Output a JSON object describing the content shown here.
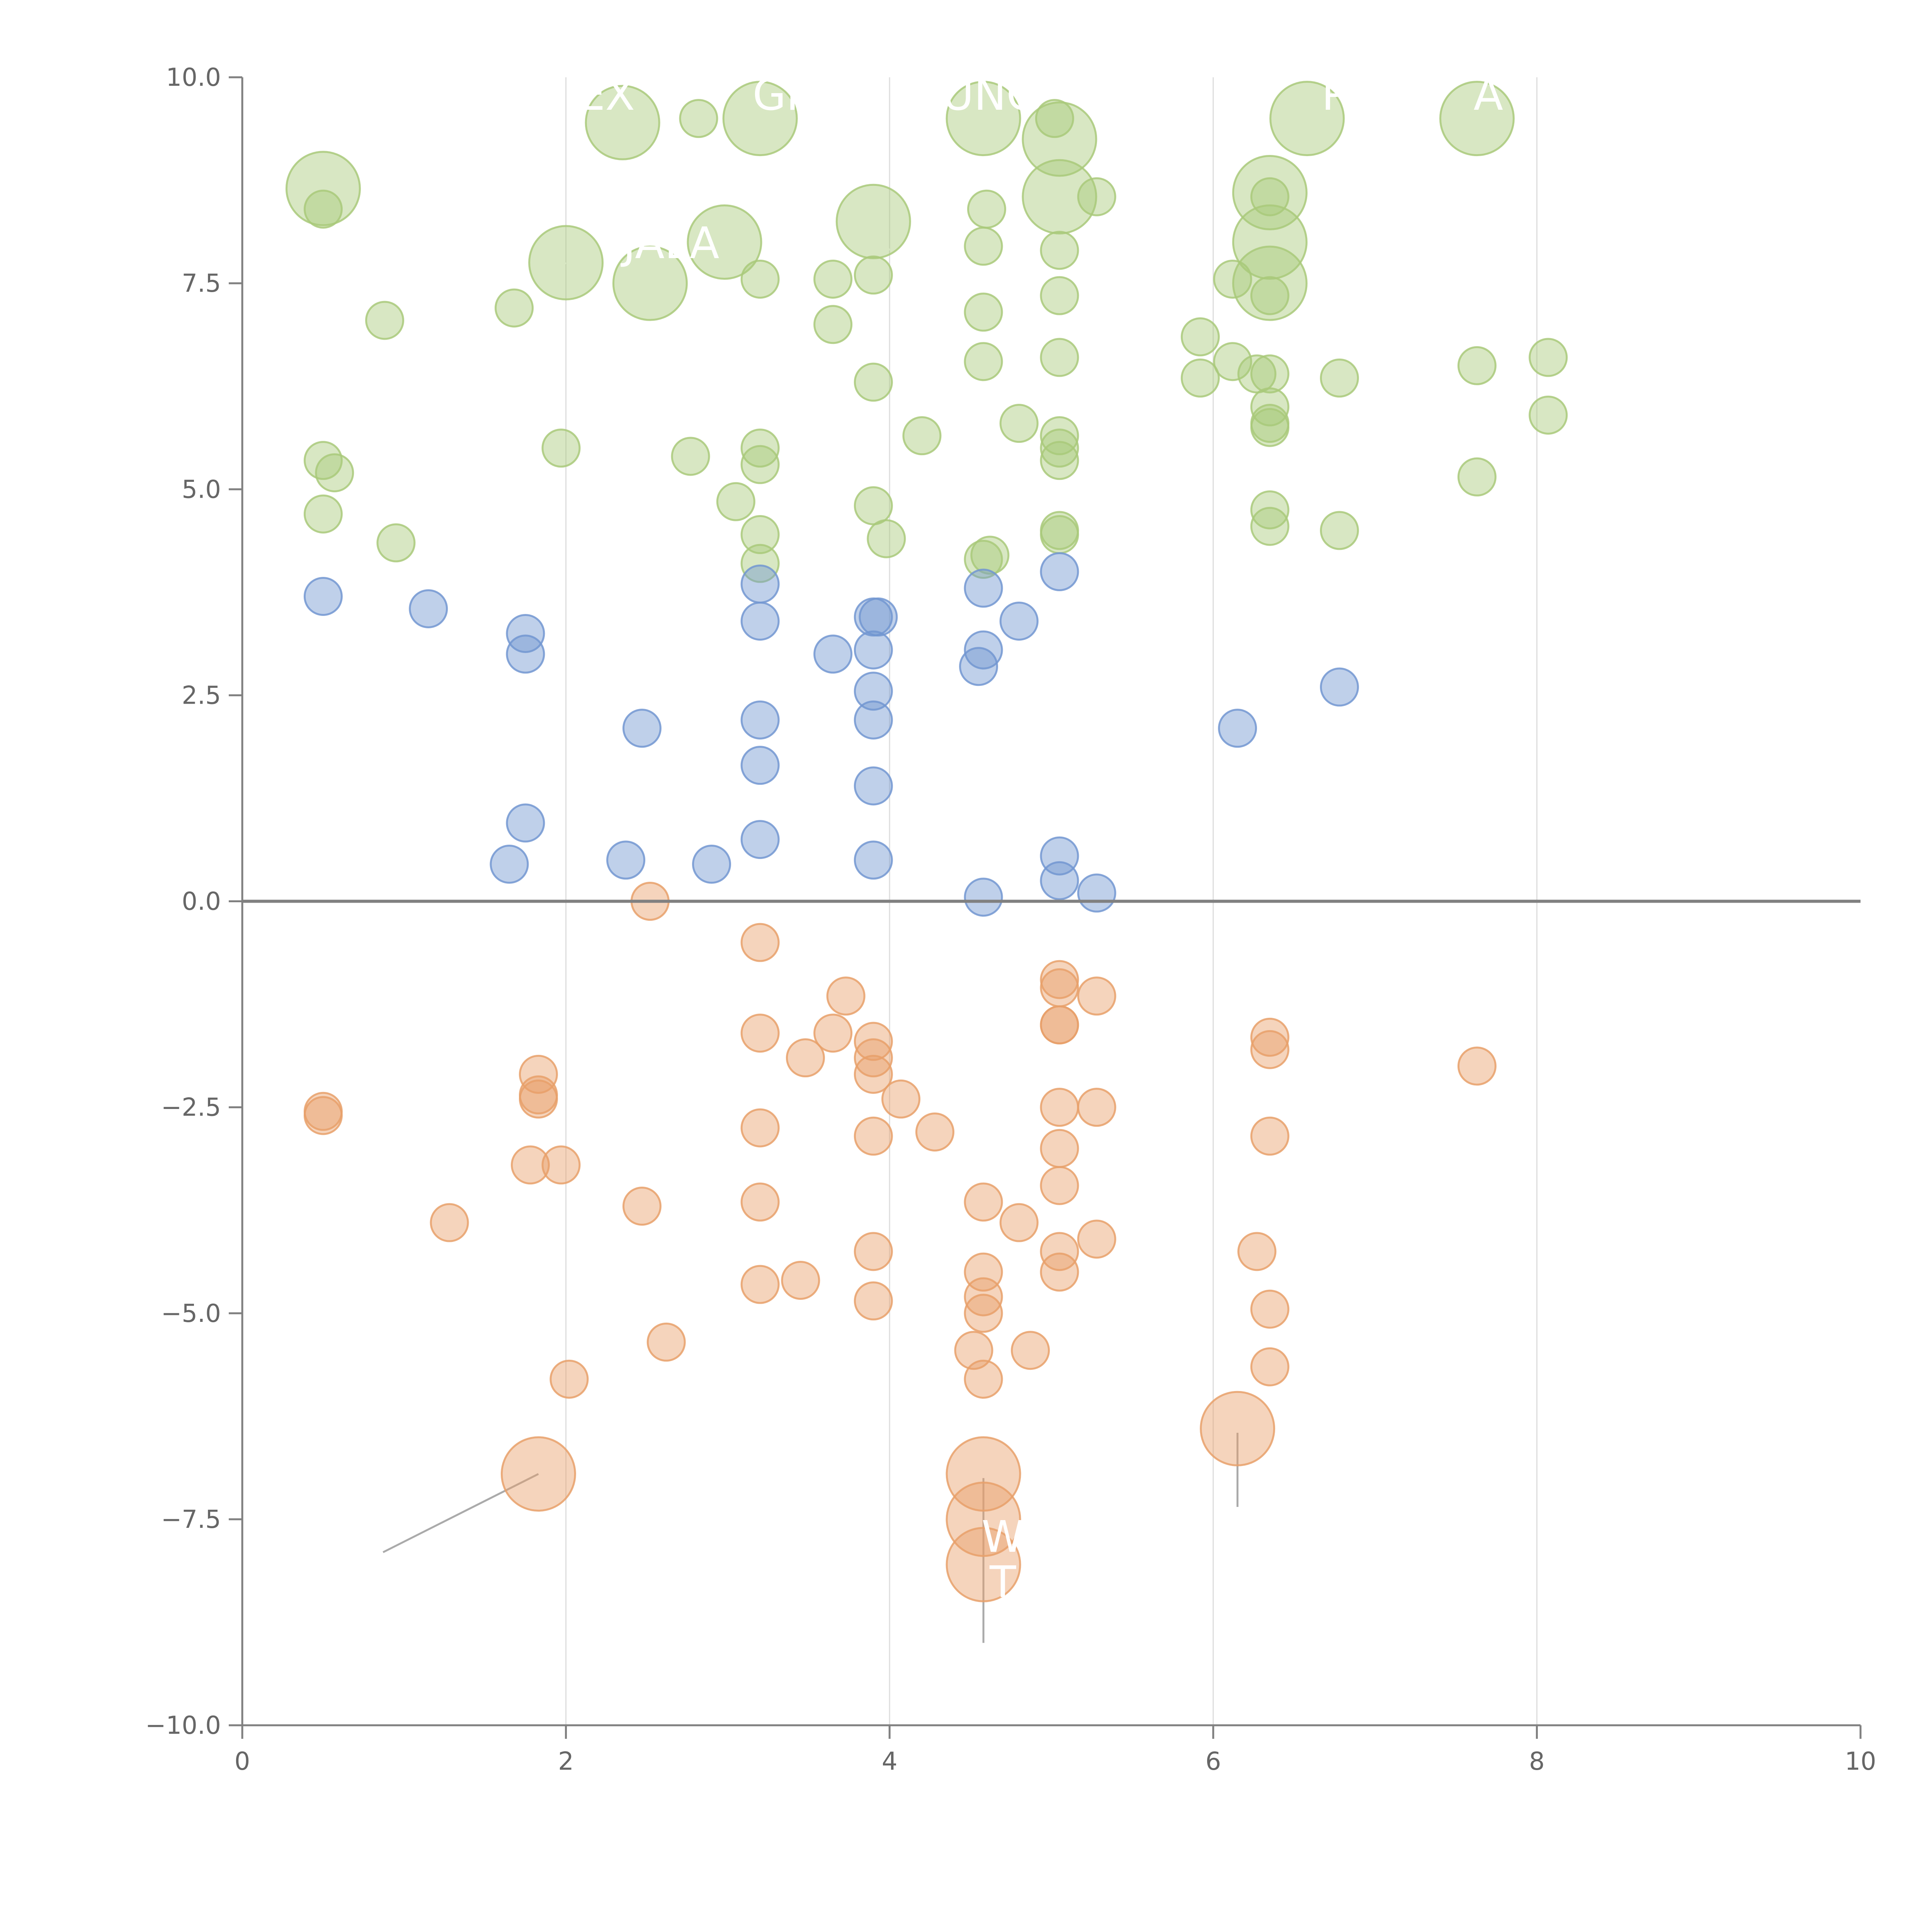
{
  "chart_data": {
    "type": "scatter",
    "title": "",
    "xlabel": "",
    "ylabel": "",
    "xlim": [
      0,
      10
    ],
    "ylim": [
      -10,
      10
    ],
    "x_ticks": [
      "0",
      "2",
      "4",
      "6",
      "8",
      "10"
    ],
    "y_ticks": [
      "−10.0",
      "−7.5",
      "−5.0",
      "−2.5",
      "0.0",
      "2.5",
      "5.0",
      "7.5",
      "10.0"
    ],
    "grid": "vertical gridlines at x = 2, 4, 6, 8",
    "legend": "none",
    "colors": {
      "green": "#a9c97a",
      "blue": "#7297d1",
      "orange": "#e8a06a",
      "axis": "#808080",
      "grid": "#dddddd"
    },
    "series": [
      {
        "color": "green",
        "points": [
          [
            0.5,
            8.65
          ],
          [
            0.5,
            8.4
          ],
          [
            0.88,
            7.05
          ],
          [
            1.68,
            7.2
          ],
          [
            2.0,
            7.75
          ],
          [
            2.35,
            9.45
          ],
          [
            2.52,
            7.5
          ],
          [
            2.82,
            9.5
          ],
          [
            2.98,
            8.0
          ],
          [
            3.2,
            9.5
          ],
          [
            3.2,
            7.55
          ],
          [
            3.65,
            7.55
          ],
          [
            3.65,
            7.0
          ],
          [
            3.9,
            8.25
          ],
          [
            3.9,
            7.6
          ],
          [
            3.9,
            6.3
          ],
          [
            4.58,
            9.5
          ],
          [
            4.6,
            8.4
          ],
          [
            4.58,
            7.95
          ],
          [
            4.58,
            7.15
          ],
          [
            4.58,
            6.55
          ],
          [
            5.02,
            9.5
          ],
          [
            5.05,
            9.25
          ],
          [
            5.05,
            8.55
          ],
          [
            5.28,
            8.55
          ],
          [
            5.05,
            7.9
          ],
          [
            5.05,
            7.35
          ],
          [
            5.05,
            6.6
          ],
          [
            5.92,
            6.85
          ],
          [
            5.92,
            6.35
          ],
          [
            6.12,
            7.55
          ],
          [
            6.12,
            6.55
          ],
          [
            6.27,
            6.4
          ],
          [
            6.35,
            6.4
          ],
          [
            6.35,
            8.6
          ],
          [
            6.35,
            8.55
          ],
          [
            6.35,
            8.0
          ],
          [
            6.35,
            7.5
          ],
          [
            6.35,
            7.35
          ],
          [
            6.35,
            6.0
          ],
          [
            6.35,
            5.8
          ],
          [
            6.35,
            5.75
          ],
          [
            6.35,
            4.75
          ],
          [
            6.35,
            4.55
          ],
          [
            6.58,
            9.5
          ],
          [
            6.78,
            6.35
          ],
          [
            6.78,
            4.5
          ],
          [
            7.63,
            9.5
          ],
          [
            7.63,
            6.5
          ],
          [
            7.63,
            5.15
          ],
          [
            8.07,
            6.6
          ],
          [
            8.07,
            5.9
          ],
          [
            0.5,
            5.35
          ],
          [
            0.57,
            5.2
          ],
          [
            0.5,
            4.7
          ],
          [
            0.95,
            4.35
          ],
          [
            1.97,
            5.5
          ],
          [
            2.77,
            5.4
          ],
          [
            3.05,
            4.85
          ],
          [
            3.2,
            5.5
          ],
          [
            3.2,
            5.3
          ],
          [
            3.2,
            4.45
          ],
          [
            3.2,
            4.1
          ],
          [
            3.9,
            4.8
          ],
          [
            3.98,
            4.4
          ],
          [
            4.2,
            5.65
          ],
          [
            4.8,
            5.8
          ],
          [
            5.05,
            5.65
          ],
          [
            5.05,
            5.5
          ],
          [
            5.05,
            5.35
          ],
          [
            5.05,
            4.5
          ],
          [
            5.05,
            4.45
          ],
          [
            4.62,
            4.2
          ],
          [
            4.58,
            4.15
          ]
        ],
        "sizes": [
          3,
          1,
          1,
          1,
          3,
          3,
          3,
          1,
          3,
          3,
          1,
          1,
          1,
          3,
          1,
          1,
          3,
          1,
          1,
          1,
          1,
          1,
          3,
          3,
          1,
          1,
          1,
          1,
          1,
          1,
          1,
          1,
          1,
          1,
          3,
          1,
          3,
          3,
          1,
          1,
          1,
          1,
          1,
          1,
          3,
          1,
          1,
          3,
          1,
          1,
          1,
          1,
          1,
          1,
          1,
          1,
          1,
          1,
          1,
          1,
          1,
          1,
          1,
          1,
          1,
          1,
          1,
          1,
          1,
          1,
          1,
          1,
          1,
          1
        ]
      },
      {
        "color": "blue",
        "points": [
          [
            0.5,
            3.7
          ],
          [
            1.15,
            3.55
          ],
          [
            1.75,
            3.25
          ],
          [
            1.75,
            3.0
          ],
          [
            2.47,
            2.1
          ],
          [
            1.65,
            0.45
          ],
          [
            1.75,
            0.95
          ],
          [
            2.37,
            0.5
          ],
          [
            2.9,
            0.45
          ],
          [
            3.2,
            3.85
          ],
          [
            3.2,
            3.4
          ],
          [
            3.2,
            2.2
          ],
          [
            3.2,
            1.65
          ],
          [
            3.2,
            0.75
          ],
          [
            3.65,
            3.0
          ],
          [
            3.9,
            3.45
          ],
          [
            3.93,
            3.45
          ],
          [
            3.9,
            3.05
          ],
          [
            3.9,
            2.55
          ],
          [
            3.9,
            2.2
          ],
          [
            3.9,
            1.4
          ],
          [
            3.9,
            0.5
          ],
          [
            4.58,
            3.8
          ],
          [
            4.58,
            3.05
          ],
          [
            4.55,
            2.85
          ],
          [
            4.8,
            3.4
          ],
          [
            4.58,
            0.05
          ],
          [
            5.05,
            4.0
          ],
          [
            5.05,
            0.55
          ],
          [
            5.05,
            0.25
          ],
          [
            5.28,
            0.1
          ],
          [
            6.15,
            2.1
          ],
          [
            6.78,
            2.6
          ]
        ],
        "sizes": [
          1,
          1,
          1,
          1,
          1,
          1,
          1,
          1,
          1,
          1,
          1,
          1,
          1,
          1,
          1,
          1,
          1,
          1,
          1,
          1,
          1,
          1,
          1,
          1,
          1,
          1,
          1,
          1,
          1,
          1,
          1,
          1,
          1
        ]
      },
      {
        "color": "orange",
        "points": [
          [
            0.5,
            -2.6
          ],
          [
            0.5,
            -2.55
          ],
          [
            1.28,
            -3.9
          ],
          [
            1.78,
            -3.2
          ],
          [
            1.83,
            -2.1
          ],
          [
            1.83,
            -2.4
          ],
          [
            1.83,
            -2.35
          ],
          [
            1.97,
            -3.2
          ],
          [
            2.02,
            -5.8
          ],
          [
            1.83,
            -6.95
          ],
          [
            2.47,
            -3.7
          ],
          [
            2.52,
            0.0
          ],
          [
            2.62,
            -5.35
          ],
          [
            3.2,
            -0.5
          ],
          [
            3.2,
            -1.6
          ],
          [
            3.2,
            -2.75
          ],
          [
            3.2,
            -3.65
          ],
          [
            3.2,
            -4.65
          ],
          [
            3.45,
            -4.6
          ],
          [
            3.48,
            -1.9
          ],
          [
            3.65,
            -1.6
          ],
          [
            3.73,
            -1.15
          ],
          [
            3.9,
            -1.7
          ],
          [
            3.9,
            -1.9
          ],
          [
            3.9,
            -2.1
          ],
          [
            3.9,
            -2.85
          ],
          [
            3.9,
            -4.25
          ],
          [
            3.9,
            -4.85
          ],
          [
            4.07,
            -2.4
          ],
          [
            4.28,
            -2.8
          ],
          [
            4.58,
            -3.65
          ],
          [
            4.58,
            -4.5
          ],
          [
            4.58,
            -4.8
          ],
          [
            4.58,
            -5.0
          ],
          [
            4.52,
            -5.45
          ],
          [
            4.58,
            -5.8
          ],
          [
            4.58,
            -6.95
          ],
          [
            4.58,
            -7.5
          ],
          [
            4.58,
            -8.05
          ],
          [
            4.8,
            -3.9
          ],
          [
            4.87,
            -5.45
          ],
          [
            5.05,
            -0.95
          ],
          [
            5.05,
            -1.05
          ],
          [
            5.05,
            -1.5
          ],
          [
            5.05,
            -1.5
          ],
          [
            5.05,
            -2.5
          ],
          [
            5.05,
            -3.0
          ],
          [
            5.05,
            -3.45
          ],
          [
            5.05,
            -4.25
          ],
          [
            5.05,
            -4.5
          ],
          [
            5.28,
            -1.15
          ],
          [
            5.28,
            -2.5
          ],
          [
            5.28,
            -4.1
          ],
          [
            6.15,
            -6.4
          ],
          [
            6.27,
            -4.25
          ],
          [
            6.35,
            -1.65
          ],
          [
            6.35,
            -1.8
          ],
          [
            6.35,
            -2.85
          ],
          [
            6.35,
            -4.95
          ],
          [
            6.35,
            -5.65
          ],
          [
            7.63,
            -2.0
          ]
        ],
        "sizes": [
          1,
          1,
          1,
          1,
          1,
          1,
          1,
          1,
          1,
          3,
          1,
          1,
          1,
          1,
          1,
          1,
          1,
          1,
          1,
          1,
          1,
          1,
          1,
          1,
          1,
          1,
          1,
          1,
          1,
          1,
          1,
          1,
          1,
          1,
          1,
          1,
          3,
          3,
          3,
          1,
          1,
          1,
          1,
          1,
          1,
          1,
          1,
          1,
          1,
          1,
          1,
          1,
          1,
          3,
          1,
          1,
          1,
          1,
          1,
          1,
          1
        ]
      }
    ],
    "annotations": [
      {
        "text": "EX",
        "x": 2.25,
        "y": 9.75
      },
      {
        "text": "GR",
        "x": 3.35,
        "y": 9.75
      },
      {
        "text": "FUNG",
        "x": 4.55,
        "y": 9.75
      },
      {
        "text": "P",
        "x": 6.75,
        "y": 9.75
      },
      {
        "text": "A",
        "x": 7.7,
        "y": 9.75
      },
      {
        "text": "JALA",
        "x": 2.65,
        "y": 7.95
      },
      {
        "text": "W",
        "x": 4.7,
        "y": -7.75
      },
      {
        "text": "T",
        "x": 4.7,
        "y": -8.3
      }
    ],
    "leader_lines": [
      {
        "color": "white",
        "from": [
          0.5,
          8.35
        ],
        "to": [
          0.5,
          9.2
        ]
      },
      {
        "color": "white",
        "from": [
          2.0,
          7.75
        ],
        "to": [
          1.65,
          7.0
        ]
      },
      {
        "color": "white",
        "from": [
          2.52,
          7.5
        ],
        "to": [
          2.52,
          7.1
        ]
      },
      {
        "color": "white",
        "from": [
          2.35,
          9.45
        ],
        "to": [
          2.1,
          9.55
        ]
      },
      {
        "color": "white",
        "from": [
          3.2,
          9.5
        ],
        "to": [
          2.7,
          9.6
        ]
      },
      {
        "color": "white",
        "from": [
          3.9,
          8.25
        ],
        "to": [
          4.0,
          7.9
        ]
      },
      {
        "color": "white",
        "from": [
          4.58,
          9.5
        ],
        "to": [
          4.95,
          9.25
        ]
      },
      {
        "color": "white",
        "from": [
          6.58,
          9.5
        ],
        "to": [
          6.05,
          9.55
        ]
      },
      {
        "color": "white",
        "from": [
          6.35,
          8.6
        ],
        "to": [
          6.7,
          9.05
        ]
      },
      {
        "color": "white",
        "from": [
          6.35,
          7.5
        ],
        "to": [
          6.5,
          7.0
        ]
      },
      {
        "color": "white",
        "from": [
          6.35,
          8.0
        ],
        "to": [
          6.6,
          7.75
        ]
      },
      {
        "color": "gray",
        "from": [
          1.83,
          -6.95
        ],
        "to": [
          0.87,
          -7.9
        ]
      },
      {
        "color": "gray",
        "from": [
          4.58,
          -7.0
        ],
        "to": [
          4.58,
          -9.0
        ]
      },
      {
        "color": "gray",
        "from": [
          6.15,
          -6.45
        ],
        "to": [
          6.15,
          -7.35
        ]
      }
    ]
  }
}
